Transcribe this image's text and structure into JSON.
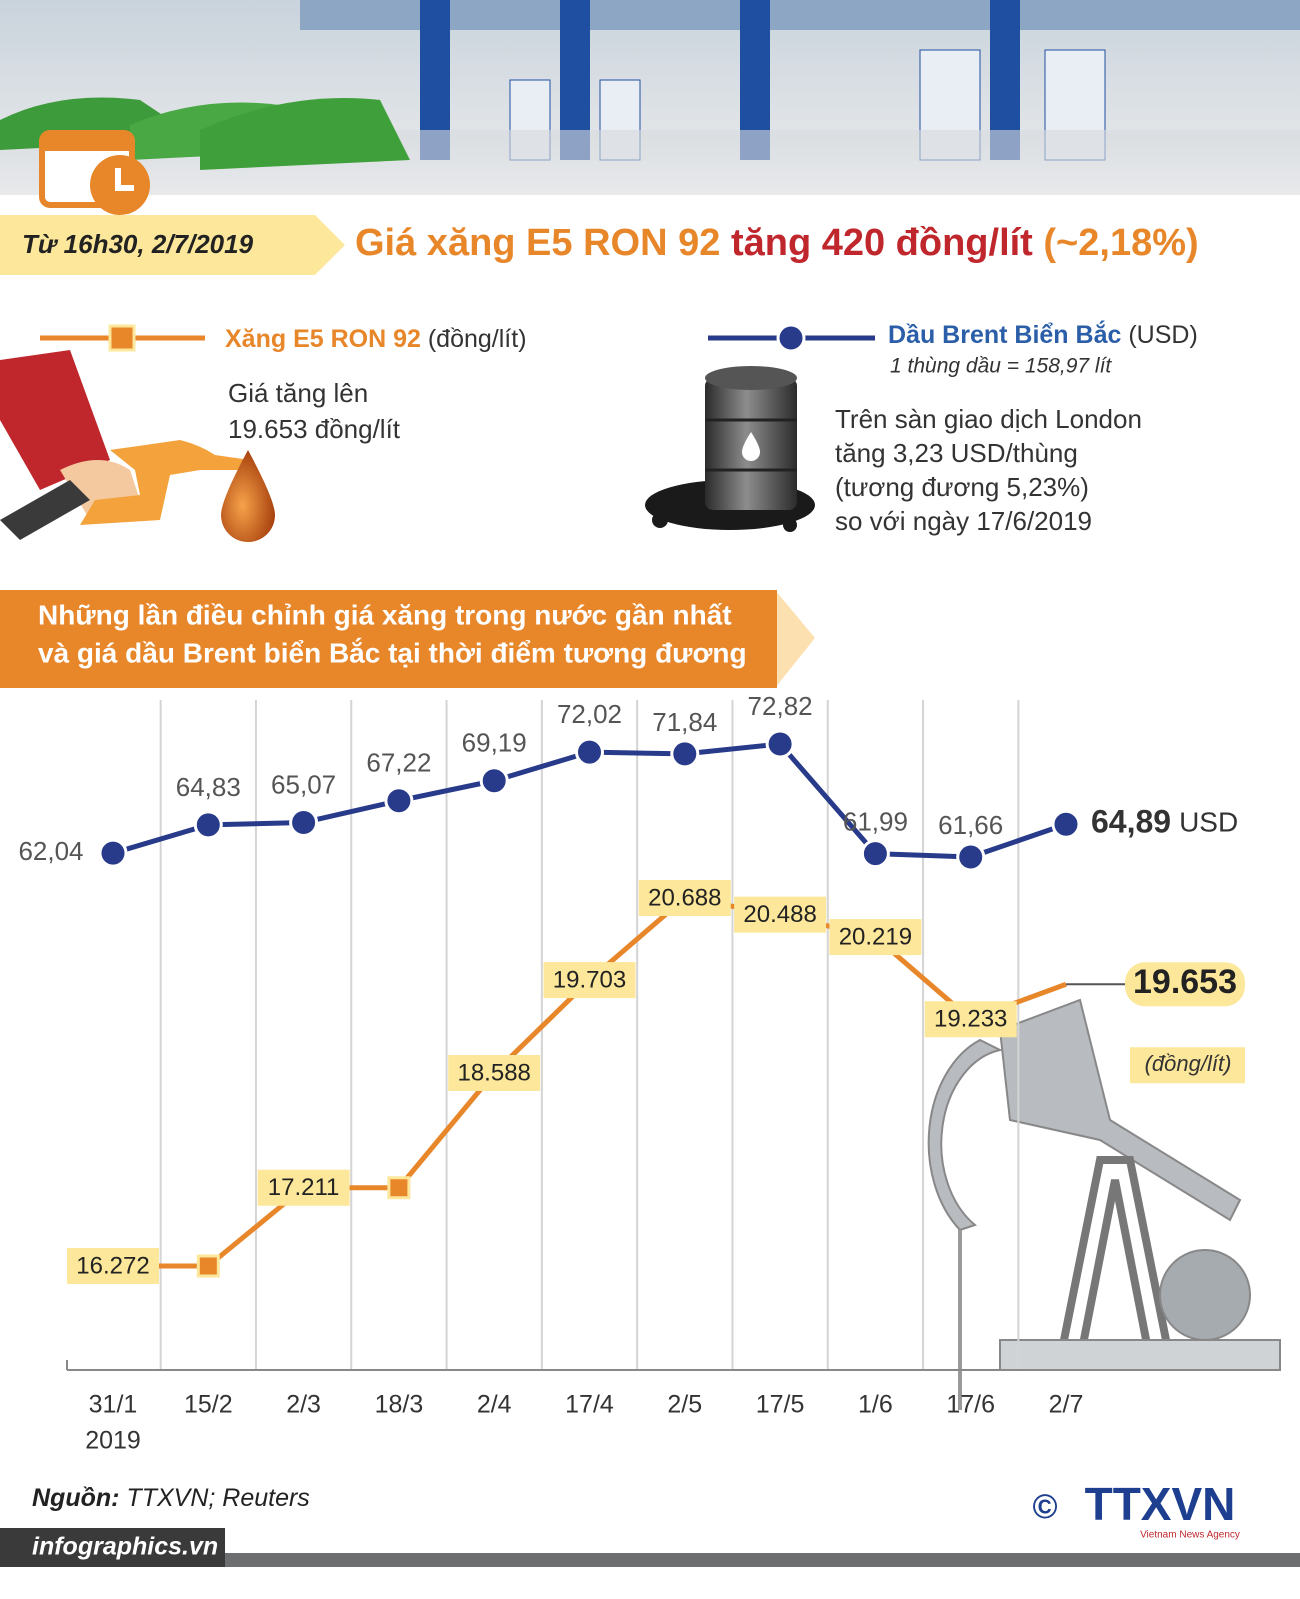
{
  "header": {
    "date": "Từ 16h30, 2/7/2019",
    "headline": [
      "Giá xăng E5 RON 92",
      "tăng 420 đồng/lít",
      "(~2,18%)"
    ]
  },
  "gasoline": {
    "text": [
      "Giá tăng lên",
      "19.653 đồng/lít"
    ]
  },
  "brent": {
    "unit": "(USD)",
    "note": "1 thùng dầu = 158,97 lít",
    "text": [
      "Trên sàn giao dịch London",
      "tăng 3,23 USD/thùng",
      "(tương đương 5,23%)",
      "so với ngày 17/6/2019"
    ]
  },
  "chart_data": {
    "type": "line",
    "title": [
      "Những lần điều chỉnh giá xăng trong nước gần nhất",
      "và giá dầu Brent biển Bắc tại thời điểm tương đương"
    ],
    "categories": [
      "31/1",
      "15/2",
      "2/3",
      "18/3",
      "2/4",
      "17/4",
      "2/5",
      "17/5",
      "1/6",
      "17/6",
      "2/7"
    ],
    "year": "2019",
    "series": [
      {
        "name": "Dầu Brent Biển Bắc",
        "color": "#283a8a",
        "marker": "circle",
        "unit": "USD",
        "values": [
          62.04,
          64.83,
          65.07,
          67.22,
          69.19,
          72.02,
          71.84,
          72.82,
          61.99,
          61.66,
          64.89
        ],
        "value_labels": [
          "62,04",
          "64,83",
          "65,07",
          "67,22",
          "69,19",
          "72,02",
          "71,84",
          "72,82",
          "61,99",
          "61,66",
          "64,89"
        ]
      },
      {
        "name": "Xăng E5 RON 92",
        "color": "#e8862a",
        "marker": "square",
        "unit": "(đồng/lít)",
        "values": [
          16272,
          16272,
          17211,
          17211,
          18588,
          19703,
          20688,
          20488,
          20219,
          19233,
          19653
        ],
        "value_labels": [
          "16.272",
          null,
          "17.211",
          null,
          "18.588",
          "19.703",
          "20.688",
          "20.488",
          "20.219",
          "19.233",
          "19.653"
        ]
      }
    ]
  },
  "footer": {
    "source_label": "Nguồn:",
    "source": "TTXVN; Reuters",
    "site": "infographics.vn",
    "copyright": "©",
    "logo": "TTXVN",
    "logo_sub": "Vietnam News Agency"
  }
}
